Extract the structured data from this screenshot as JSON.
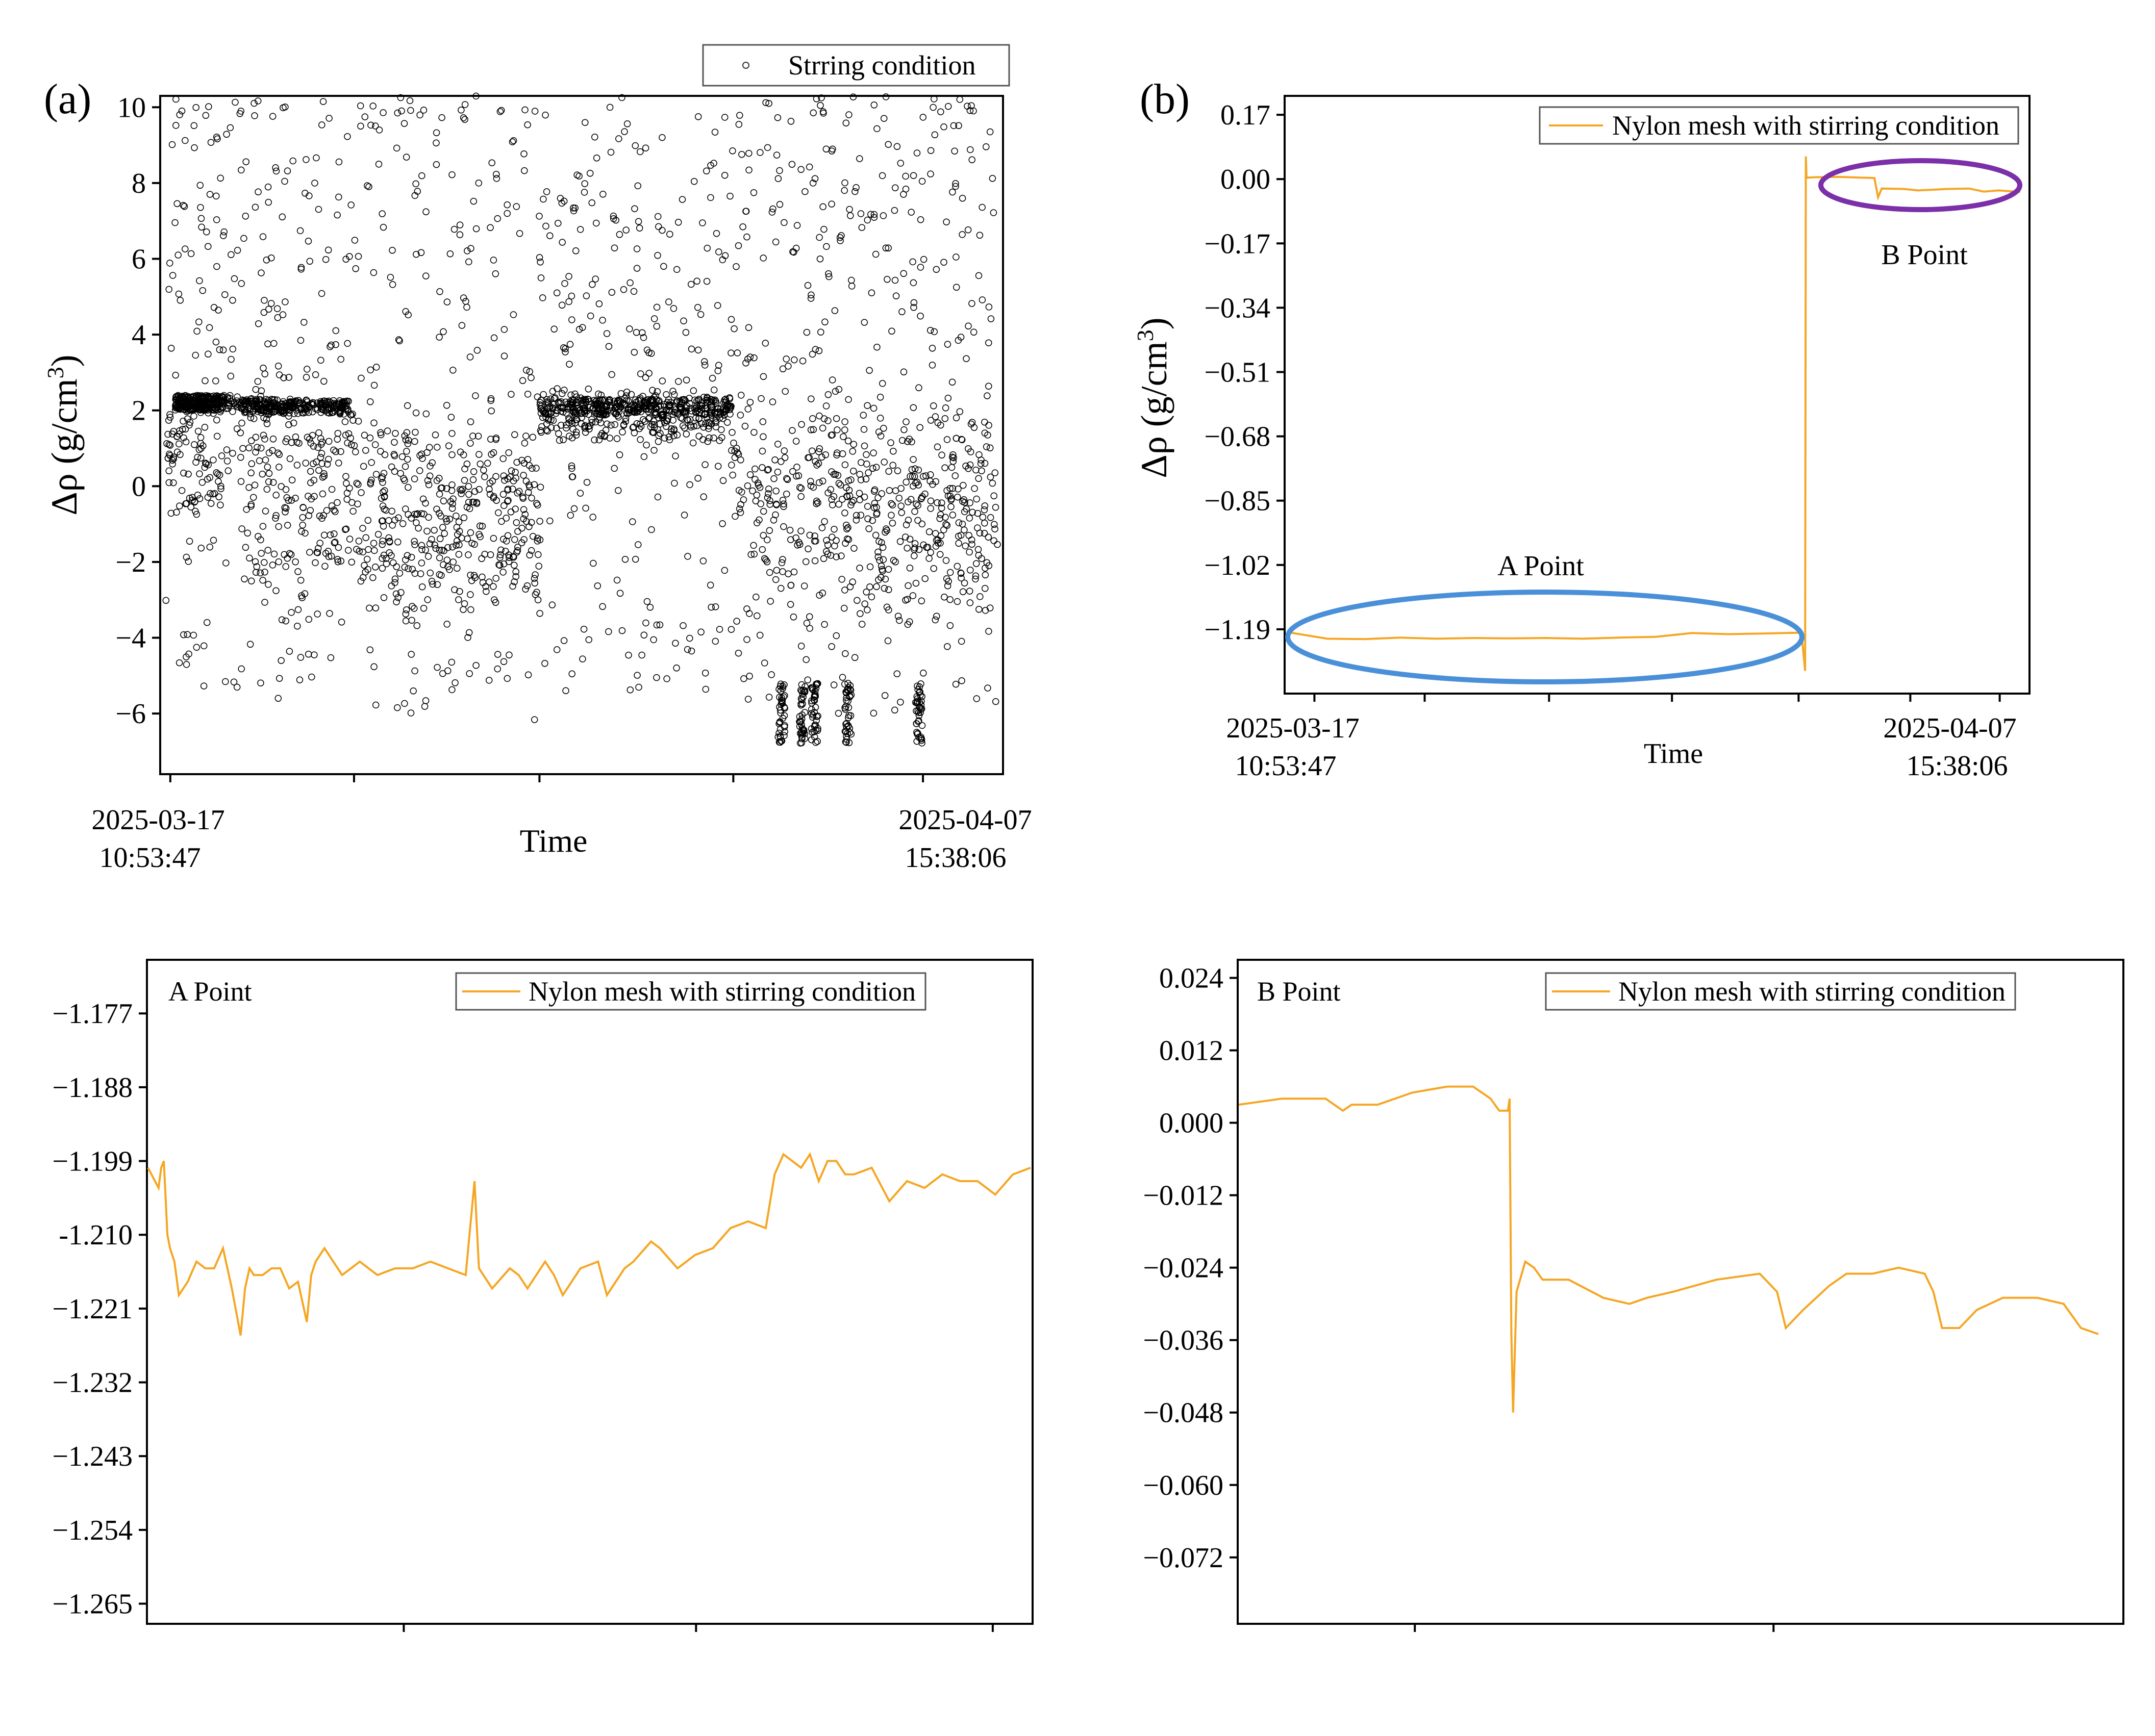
{
  "chart_data": [
    {
      "panel": "(a)",
      "type": "scatter",
      "ylabel": "Δρ (g/cm3)",
      "ylabel_parts": {
        "symbol": "Δρ",
        "unit_open": " (g/cm",
        "unit_sup": "3",
        "unit_close": ")"
      },
      "xlabel": "Time",
      "x_tick_labels": [
        {
          "date": "2025-03-17",
          "time": "10:53:47"
        },
        {
          "date": "2025-04-07",
          "time": "15:38:06"
        }
      ],
      "xlim": [
        "2025-03-17 10:53:47",
        "2025-04-07 15:38:06"
      ],
      "ylim": [
        -7.6,
        10.3
      ],
      "y_ticks": [
        -6,
        -4,
        -2,
        0,
        2,
        4,
        6,
        8,
        10
      ],
      "legend": {
        "entries": [
          "Strring condition"
        ],
        "placement": "top-right"
      },
      "series": [
        {
          "name": "Strring condition",
          "marker": "open-circle",
          "color": "#000000",
          "profile": [
            {
              "t": 0.0,
              "center": 2.2,
              "spread_low": 3.0,
              "spread_high": 0.3
            },
            {
              "t": 0.07,
              "center": 2.2,
              "spread_low": 0.3,
              "spread_high": 0.3
            },
            {
              "t": 0.09,
              "center": 2.0,
              "spread_low": 4.5,
              "spread_high": 0.5
            },
            {
              "t": 0.22,
              "center": 2.0,
              "spread_low": 4.5,
              "spread_high": 0.5
            },
            {
              "t": 0.23,
              "center": 0.0,
              "spread_low": 3.5,
              "spread_high": 2.0
            },
            {
              "t": 0.44,
              "center": -0.5,
              "spread_low": 3.5,
              "spread_high": 2.0
            },
            {
              "t": 0.45,
              "center": 2.1,
              "spread_low": 1.0,
              "spread_high": 0.5
            },
            {
              "t": 0.68,
              "center": 1.5,
              "spread_low": 3.5,
              "spread_high": 1.0
            },
            {
              "t": 0.7,
              "center": 0.0,
              "spread_low": 4.0,
              "spread_high": 2.5
            },
            {
              "t": 1.0,
              "center": 0.0,
              "spread_low": 4.0,
              "spread_high": 2.5
            }
          ]
        }
      ],
      "annotations": [
        "clustered points near -6 around 0.74-0.82 and 0.90 of the time span"
      ]
    },
    {
      "panel": "(b)",
      "type": "line",
      "ylabel": "Δρ (g/cm3)",
      "ylabel_parts": {
        "symbol": "Δρ",
        "unit_open": " (g/cm",
        "unit_sup": "3",
        "unit_close": ")"
      },
      "xlabel": "Time",
      "x_tick_labels": [
        {
          "date": "2025-03-17",
          "time": "10:53:47"
        },
        {
          "date": "2025-04-07",
          "time": "15:38:06"
        }
      ],
      "ylim": [
        -1.36,
        0.22
      ],
      "y_ticks": [
        0.17,
        0.0,
        -0.17,
        -0.34,
        -0.51,
        -0.68,
        -0.85,
        -1.02,
        -1.19
      ],
      "y_tick_labels": [
        "0.17",
        "0.00",
        "−0.17",
        "−0.34",
        "−0.51",
        "−0.68",
        "−0.85",
        "−1.02",
        "−1.19"
      ],
      "legend": {
        "entries": [
          "Nylon mesh with stirring condition"
        ],
        "placement": "top-right"
      },
      "color": "#F5A623",
      "series": [
        {
          "name": "Nylon mesh with stirring condition",
          "t": [
            0.0,
            0.05,
            0.1,
            0.15,
            0.2,
            0.25,
            0.3,
            0.35,
            0.4,
            0.45,
            0.5,
            0.55,
            0.6,
            0.65,
            0.7,
            0.705,
            0.706,
            0.707,
            0.708,
            0.72,
            0.75,
            0.78,
            0.8,
            0.805,
            0.81,
            0.84,
            0.86,
            0.88,
            0.9,
            0.93,
            0.95,
            0.97,
            1.0
          ],
          "values": [
            -1.199,
            -1.215,
            -1.216,
            -1.212,
            -1.215,
            -1.213,
            -1.214,
            -1.213,
            -1.215,
            -1.212,
            -1.21,
            -1.2,
            -1.203,
            -1.201,
            -1.199,
            -1.3,
            0.06,
            0.003,
            0.004,
            0.005,
            0.006,
            0.004,
            0.003,
            -0.048,
            -0.025,
            -0.026,
            -0.03,
            -0.028,
            -0.026,
            -0.025,
            -0.033,
            -0.03,
            -0.034
          ]
        }
      ],
      "annotations": [
        {
          "label": "A Point",
          "shape": "ellipse",
          "color": "#4A90D9"
        },
        {
          "label": "B Point",
          "shape": "ellipse",
          "color": "#7B2FA8"
        }
      ]
    },
    {
      "panel": "A Point",
      "type": "line",
      "title": "A Point",
      "ylim": [
        -1.268,
        -1.169
      ],
      "y_ticks": [
        -1.177,
        -1.188,
        -1.199,
        -1.21,
        -1.221,
        -1.232,
        -1.243,
        -1.254,
        -1.265
      ],
      "y_tick_labels": [
        "−1.177",
        "−1.188",
        "−1.199",
        "-1.210",
        "−1.221",
        "−1.232",
        "−1.243",
        "−1.254",
        "−1.265"
      ],
      "legend": {
        "entries": [
          "Nylon mesh with stirring condition"
        ],
        "placement": "top-right"
      },
      "color": "#F5A623",
      "series": [
        {
          "name": "Nylon mesh with stirring condition",
          "t": [
            0.0,
            0.012,
            0.015,
            0.018,
            0.022,
            0.025,
            0.03,
            0.035,
            0.045,
            0.055,
            0.065,
            0.075,
            0.085,
            0.095,
            0.105,
            0.11,
            0.115,
            0.12,
            0.13,
            0.14,
            0.15,
            0.16,
            0.17,
            0.18,
            0.185,
            0.19,
            0.2,
            0.21,
            0.22,
            0.23,
            0.24,
            0.25,
            0.26,
            0.28,
            0.3,
            0.32,
            0.34,
            0.36,
            0.37,
            0.375,
            0.38,
            0.39,
            0.41,
            0.42,
            0.43,
            0.45,
            0.46,
            0.47,
            0.49,
            0.51,
            0.52,
            0.54,
            0.55,
            0.57,
            0.58,
            0.6,
            0.62,
            0.64,
            0.66,
            0.68,
            0.7,
            0.71,
            0.72,
            0.73,
            0.74,
            0.75,
            0.76,
            0.77,
            0.78,
            0.79,
            0.8,
            0.82,
            0.84,
            0.86,
            0.88,
            0.9,
            0.92,
            0.94,
            0.96,
            0.98,
            1.0
          ],
          "values": [
            -1.2,
            -1.203,
            -1.2,
            -1.199,
            -1.21,
            -1.212,
            -1.214,
            -1.219,
            -1.217,
            -1.214,
            -1.215,
            -1.215,
            -1.212,
            -1.218,
            -1.225,
            -1.218,
            -1.215,
            -1.216,
            -1.216,
            -1.215,
            -1.215,
            -1.218,
            -1.217,
            -1.223,
            -1.216,
            -1.214,
            -1.212,
            -1.214,
            -1.216,
            -1.215,
            -1.214,
            -1.215,
            -1.216,
            -1.215,
            -1.215,
            -1.214,
            -1.215,
            -1.216,
            -1.202,
            -1.215,
            -1.216,
            -1.218,
            -1.215,
            -1.216,
            -1.218,
            -1.214,
            -1.216,
            -1.219,
            -1.215,
            -1.214,
            -1.219,
            -1.215,
            -1.214,
            -1.211,
            -1.212,
            -1.215,
            -1.213,
            -1.212,
            -1.209,
            -1.208,
            -1.209,
            -1.201,
            -1.198,
            -1.199,
            -1.2,
            -1.198,
            -1.202,
            -1.199,
            -1.199,
            -1.201,
            -1.201,
            -1.2,
            -1.205,
            -1.202,
            -1.203,
            -1.201,
            -1.202,
            -1.202,
            -1.204,
            -1.201,
            -1.2
          ]
        }
      ]
    },
    {
      "panel": "B Point",
      "type": "line",
      "title": "B Point",
      "ylim": [
        -0.083,
        0.027
      ],
      "y_ticks": [
        0.024,
        0.012,
        0.0,
        -0.012,
        -0.024,
        -0.036,
        -0.048,
        -0.06,
        -0.072
      ],
      "y_tick_labels": [
        "0.024",
        "0.012",
        "0.000",
        "−0.012",
        "−0.024",
        "−0.036",
        "−0.048",
        "−0.060",
        "−0.072"
      ],
      "legend": {
        "entries": [
          "Nylon mesh with stirring condition"
        ],
        "placement": "top-right"
      },
      "color": "#F5A623",
      "series": [
        {
          "name": "Nylon mesh with stirring condition",
          "t": [
            0.0,
            0.05,
            0.1,
            0.12,
            0.13,
            0.16,
            0.2,
            0.24,
            0.27,
            0.29,
            0.3,
            0.31,
            0.312,
            0.314,
            0.316,
            0.32,
            0.33,
            0.34,
            0.35,
            0.38,
            0.42,
            0.45,
            0.47,
            0.5,
            0.55,
            0.6,
            0.62,
            0.63,
            0.65,
            0.68,
            0.7,
            0.73,
            0.76,
            0.79,
            0.8,
            0.81,
            0.83,
            0.85,
            0.88,
            0.92,
            0.95,
            0.97,
            0.99
          ],
          "values": [
            0.003,
            0.004,
            0.004,
            0.002,
            0.003,
            0.003,
            0.005,
            0.006,
            0.006,
            0.004,
            0.002,
            0.002,
            0.004,
            -0.035,
            -0.048,
            -0.028,
            -0.023,
            -0.024,
            -0.026,
            -0.026,
            -0.029,
            -0.03,
            -0.029,
            -0.028,
            -0.026,
            -0.025,
            -0.028,
            -0.034,
            -0.031,
            -0.027,
            -0.025,
            -0.025,
            -0.024,
            -0.025,
            -0.028,
            -0.034,
            -0.034,
            -0.031,
            -0.029,
            -0.029,
            -0.03,
            -0.034,
            -0.035
          ]
        }
      ]
    }
  ]
}
